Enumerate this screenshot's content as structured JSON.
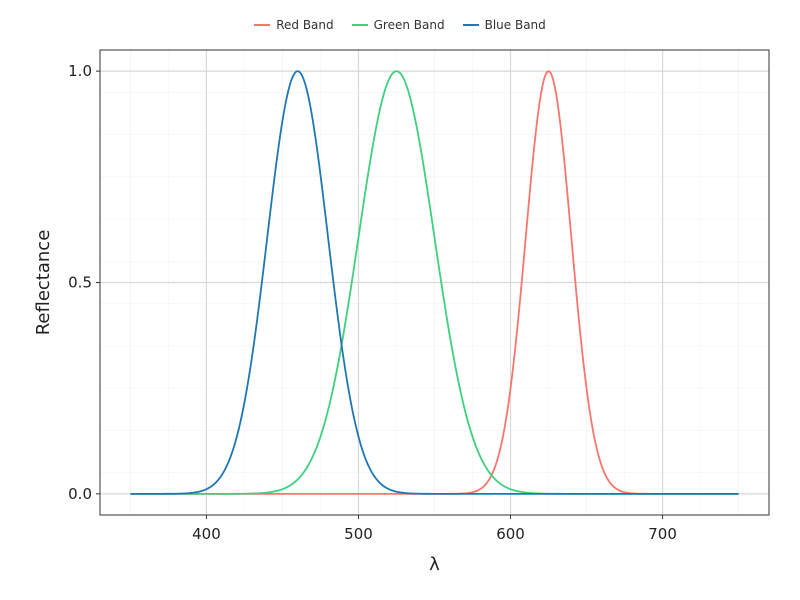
{
  "chart_data": {
    "type": "line",
    "xlabel": "λ",
    "ylabel": "Reflectance",
    "xlim": [
      330,
      770
    ],
    "ylim": [
      -0.05,
      1.05
    ],
    "xticks": [
      400,
      500,
      600,
      700
    ],
    "yticks": [
      0.0,
      0.5,
      1.0
    ],
    "ytick_labels": [
      "0.0",
      "0.5",
      "1.0"
    ],
    "grid": true,
    "legend_position": "top",
    "series": [
      {
        "name": "Red Band",
        "color": "#f8766d",
        "peak": 625,
        "sigma": 15,
        "x": [
          350,
          575,
          590,
          600,
          610,
          620,
          625,
          630,
          640,
          650,
          660,
          675,
          690,
          750
        ],
        "y": [
          0.0,
          0.004,
          0.066,
          0.249,
          0.607,
          0.946,
          1.0,
          0.946,
          0.607,
          0.249,
          0.066,
          0.004,
          0.0,
          0.0
        ]
      },
      {
        "name": "Green Band",
        "color": "#3ed07d",
        "peak": 525,
        "sigma": 25,
        "x": [
          350,
          450,
          475,
          490,
          500,
          510,
          525,
          540,
          550,
          560,
          575,
          600,
          650,
          750
        ],
        "y": [
          0.0,
          0.011,
          0.135,
          0.375,
          0.607,
          0.835,
          1.0,
          0.835,
          0.607,
          0.375,
          0.135,
          0.011,
          0.0,
          0.0
        ]
      },
      {
        "name": "Blue Band",
        "color": "#1f78b4",
        "peak": 460,
        "sigma": 20,
        "x": [
          350,
          400,
          420,
          430,
          440,
          450,
          460,
          470,
          480,
          490,
          500,
          520,
          550,
          750
        ],
        "y": [
          0.0,
          0.011,
          0.135,
          0.325,
          0.607,
          0.882,
          1.0,
          0.882,
          0.607,
          0.325,
          0.135,
          0.011,
          0.0,
          0.0
        ]
      }
    ]
  }
}
